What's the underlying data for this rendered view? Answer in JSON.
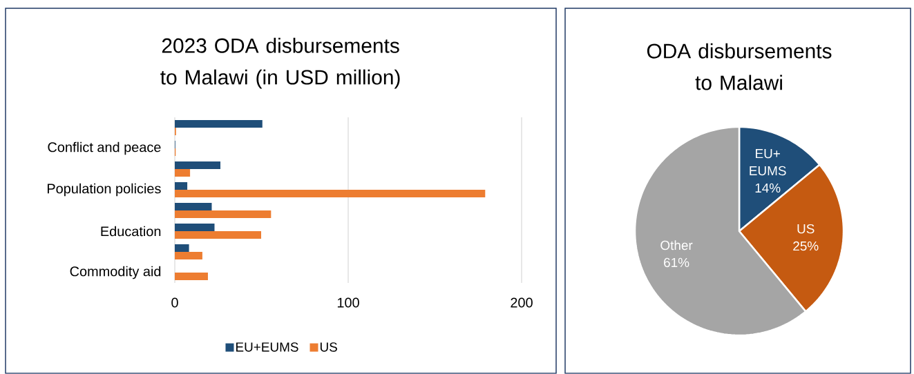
{
  "chart_data": [
    {
      "type": "bar",
      "orientation": "horizontal",
      "title": "2023 ODA disbursements to Malawi (in USD million)",
      "categories": [
        null,
        "Conflict and peace",
        null,
        "Population policies",
        null,
        "Education",
        null,
        "Commodity aid"
      ],
      "series": [
        {
          "name": "EU+EUMS",
          "color": "#1f4e79",
          "values": [
            50.5,
            0.3,
            26.3,
            7.2,
            21.3,
            22.9,
            8.2,
            0
          ]
        },
        {
          "name": "US",
          "color": "#ed7d31",
          "values": [
            0.7,
            0.5,
            8.8,
            179,
            55.5,
            49.8,
            15.9,
            19.1
          ]
        }
      ],
      "xlim": [
        0,
        200
      ],
      "xticks": [
        0,
        100,
        200
      ],
      "grid": "x",
      "legend": "bottom"
    },
    {
      "type": "pie",
      "title": "ODA disbursements to Malawi",
      "categories": [
        "EU+ EUMS",
        "US",
        "Other"
      ],
      "values": [
        14,
        25,
        61
      ],
      "colors": [
        "#1f4e79",
        "#c55a11",
        "#a5a5a5"
      ],
      "value_labels": [
        "14%",
        "25%",
        "61%"
      ]
    }
  ]
}
